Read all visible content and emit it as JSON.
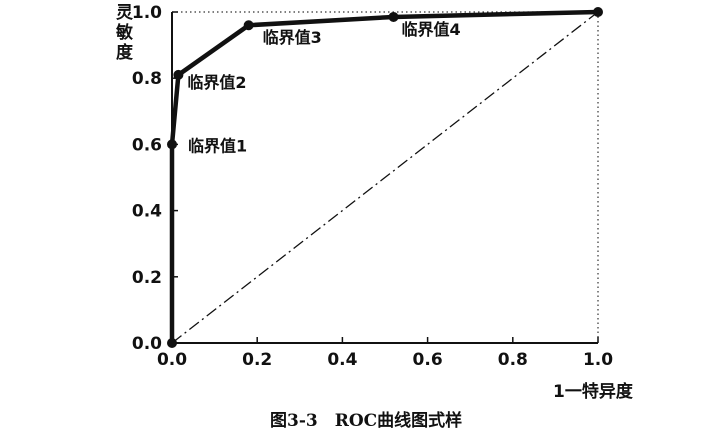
{
  "chart_data": {
    "type": "line",
    "title": "",
    "caption": "图3-3　ROC曲线图式样",
    "xlabel": "1一特异度",
    "ylabel": "灵敏度",
    "xlim": [
      0.0,
      1.0
    ],
    "ylim": [
      0.0,
      1.0
    ],
    "xticks": [
      0.0,
      0.2,
      0.4,
      0.6,
      0.8,
      1.0
    ],
    "xtick_labels": [
      "0.0",
      "0.2",
      "0.4",
      "0.6",
      "0.8",
      "1.0"
    ],
    "yticks": [
      0.0,
      0.2,
      0.4,
      0.6,
      0.8,
      1.0
    ],
    "ytick_labels": [
      "0.0",
      "0.2",
      "0.4",
      "0.6",
      "0.8",
      "1.0"
    ],
    "grid": false,
    "legend": "none",
    "series": [
      {
        "x": [
          0.0,
          0.0,
          0.015,
          0.18,
          0.52,
          1.0
        ],
        "y": [
          0.0,
          0.6,
          0.81,
          0.96,
          0.985,
          1.0
        ],
        "style": "solid",
        "color": "#111111"
      },
      {
        "x": [
          0.0,
          1.0
        ],
        "y": [
          0.0,
          1.0
        ],
        "style": "dash-dot",
        "color": "#111111"
      }
    ],
    "annotations": [
      {
        "text": "临界值1",
        "x": 0.0,
        "y": 0.6
      },
      {
        "text": "临界值2",
        "x": 0.015,
        "y": 0.81
      },
      {
        "text": "临界值3",
        "x": 0.18,
        "y": 0.96
      },
      {
        "text": "临界值4",
        "x": 0.52,
        "y": 0.985
      }
    ]
  }
}
